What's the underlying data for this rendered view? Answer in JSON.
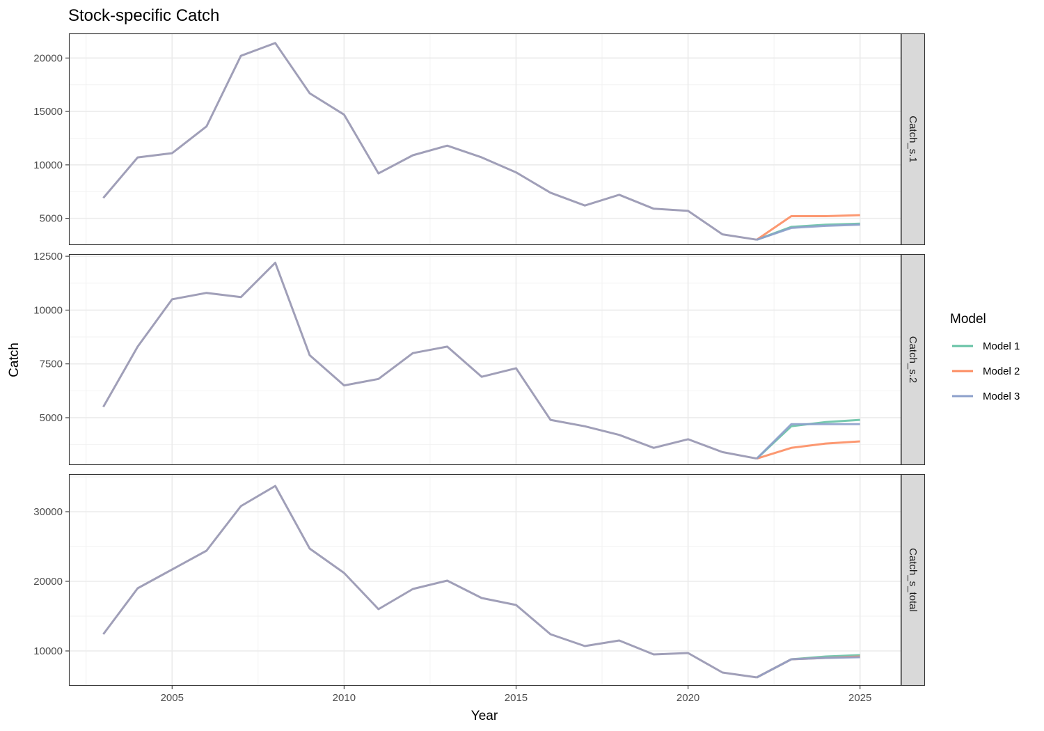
{
  "chart_data": {
    "type": "line",
    "title": "Stock-specific Catch",
    "xlabel": "Year",
    "ylabel": "Catch",
    "xlim": [
      2002,
      2026.2
    ],
    "x_ticks": [
      2005,
      2010,
      2015,
      2020,
      2025
    ],
    "x_tick_labels": [
      "2005",
      "2010",
      "2015",
      "2020",
      "2025"
    ],
    "grid": true,
    "legend": {
      "title": "Model",
      "placement": "right",
      "entries": [
        "Model 1",
        "Model 2",
        "Model 3"
      ]
    },
    "colors": {
      "Model 1": "#66c2a5",
      "Model 2": "#fc8d62",
      "Model 3": "#8da0cb",
      "history": "#a09fb8"
    },
    "panels": [
      {
        "strip": "Catch_s.1",
        "ylim": [
          2500,
          22300
        ],
        "y_ticks": [
          5000,
          10000,
          15000,
          20000
        ],
        "y_tick_labels": [
          "5000",
          "10000",
          "15000",
          "20000"
        ],
        "history": {
          "x": [
            2003,
            2004,
            2005,
            2006,
            2007,
            2008,
            2009,
            2010,
            2011,
            2012,
            2013,
            2014,
            2015,
            2016,
            2017,
            2018,
            2019,
            2020,
            2021,
            2022
          ],
          "y": [
            6900,
            10700,
            11100,
            13600,
            20200,
            21400,
            16700,
            14700,
            9200,
            10900,
            11800,
            10700,
            9300,
            7400,
            6200,
            7200,
            5900,
            5700,
            3500,
            3000
          ]
        },
        "series": [
          {
            "name": "Model 1",
            "x": [
              2022,
              2023,
              2024,
              2025
            ],
            "y": [
              3000,
              4200,
              4400,
              4500
            ]
          },
          {
            "name": "Model 2",
            "x": [
              2022,
              2023,
              2024,
              2025
            ],
            "y": [
              3000,
              5200,
              5200,
              5300
            ]
          },
          {
            "name": "Model 3",
            "x": [
              2022,
              2023,
              2024,
              2025
            ],
            "y": [
              3000,
              4100,
              4300,
              4400
            ]
          }
        ]
      },
      {
        "strip": "Catch_s.2",
        "ylim": [
          2800,
          12600
        ],
        "y_ticks": [
          5000,
          7500,
          10000,
          12500
        ],
        "y_tick_labels": [
          "5000",
          "7500",
          "10000",
          "12500"
        ],
        "history": {
          "x": [
            2003,
            2004,
            2005,
            2006,
            2007,
            2008,
            2009,
            2010,
            2011,
            2012,
            2013,
            2014,
            2015,
            2016,
            2017,
            2018,
            2019,
            2020,
            2021,
            2022
          ],
          "y": [
            5500,
            8300,
            10500,
            10800,
            10600,
            12200,
            7900,
            6500,
            6800,
            8000,
            8300,
            6900,
            7300,
            4900,
            4600,
            4200,
            3600,
            4000,
            3400,
            3100
          ]
        },
        "series": [
          {
            "name": "Model 1",
            "x": [
              2022,
              2023,
              2024,
              2025
            ],
            "y": [
              3100,
              4600,
              4800,
              4900
            ]
          },
          {
            "name": "Model 2",
            "x": [
              2022,
              2023,
              2024,
              2025
            ],
            "y": [
              3100,
              3600,
              3800,
              3900
            ]
          },
          {
            "name": "Model 3",
            "x": [
              2022,
              2023,
              2024,
              2025
            ],
            "y": [
              3100,
              4700,
              4700,
              4700
            ]
          }
        ]
      },
      {
        "strip": "Catch_s_total",
        "ylim": [
          5000,
          35400
        ],
        "y_ticks": [
          10000,
          20000,
          30000
        ],
        "y_tick_labels": [
          "10000",
          "20000",
          "30000"
        ],
        "history": {
          "x": [
            2003,
            2004,
            2005,
            2006,
            2007,
            2008,
            2009,
            2010,
            2011,
            2012,
            2013,
            2014,
            2015,
            2016,
            2017,
            2018,
            2019,
            2020,
            2021,
            2022
          ],
          "y": [
            12400,
            19000,
            21700,
            24400,
            30800,
            33700,
            24700,
            21200,
            16000,
            18900,
            20100,
            17600,
            16600,
            12400,
            10700,
            11500,
            9500,
            9700,
            6900,
            6200
          ]
        },
        "series": [
          {
            "name": "Model 1",
            "x": [
              2022,
              2023,
              2024,
              2025
            ],
            "y": [
              6200,
              8800,
              9200,
              9400
            ]
          },
          {
            "name": "Model 2",
            "x": [
              2022,
              2023,
              2024,
              2025
            ],
            "y": [
              6200,
              8800,
              9000,
              9200
            ]
          },
          {
            "name": "Model 3",
            "x": [
              2022,
              2023,
              2024,
              2025
            ],
            "y": [
              6200,
              8800,
              9000,
              9100
            ]
          }
        ]
      }
    ]
  }
}
